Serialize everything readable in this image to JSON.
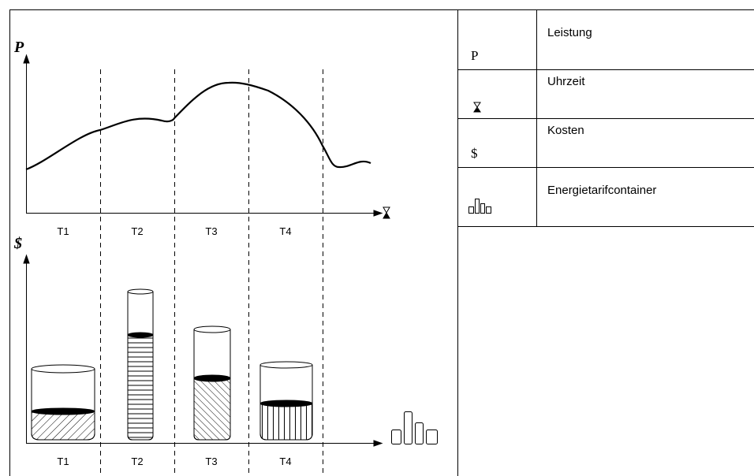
{
  "diagram": {
    "power_axis_label": "P",
    "cost_axis_label": "$",
    "top_periods": [
      "T1",
      "T2",
      "T3",
      "T4"
    ],
    "bottom_periods": [
      "T1",
      "T2",
      "T3",
      "T4"
    ]
  },
  "legend": {
    "rows": [
      {
        "symbol": "P",
        "label": "Leistung"
      },
      {
        "label": "Uhrzeit"
      },
      {
        "symbol": "$",
        "label": "Kosten"
      },
      {
        "label": "Energietarifcontainer"
      }
    ]
  }
}
